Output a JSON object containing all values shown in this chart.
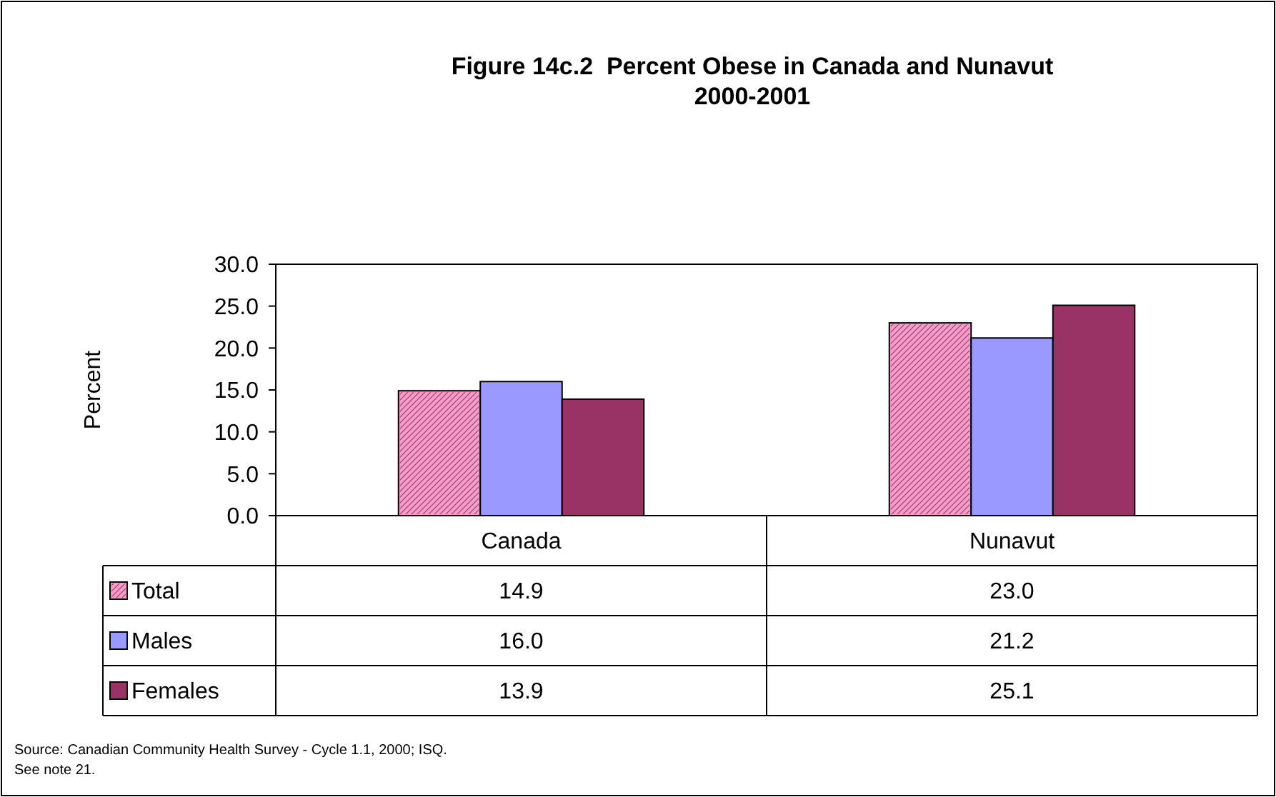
{
  "chart_data": {
    "type": "bar",
    "title": "Figure 14c.2  Percent Obese in Canada and Nunavut\n2000-2001",
    "ylabel": "Percent",
    "categories": [
      "Canada",
      "Nunavut"
    ],
    "series": [
      {
        "name": "Total",
        "color": "#ff99cc",
        "values": [
          14.9,
          23.0
        ],
        "value_labels": [
          "14.9",
          "23.0"
        ]
      },
      {
        "name": "Males",
        "color": "#9999ff",
        "values": [
          16.0,
          21.2
        ],
        "value_labels": [
          "16.0",
          "21.2"
        ]
      },
      {
        "name": "Females",
        "color": "#993366",
        "values": [
          13.9,
          25.1
        ],
        "value_labels": [
          "13.9",
          "25.1"
        ]
      }
    ],
    "ylim": [
      0,
      30
    ],
    "yticks": [
      {
        "value": 0,
        "label": "0.0"
      },
      {
        "value": 5,
        "label": "5.0"
      },
      {
        "value": 10,
        "label": "10.0"
      },
      {
        "value": 15,
        "label": "15.0"
      },
      {
        "value": 20,
        "label": "20.0"
      },
      {
        "value": 25,
        "label": "25.0"
      },
      {
        "value": 30,
        "label": "30.0"
      }
    ],
    "legend": "bottom",
    "annotations": [
      "Source: Canadian Community Health Survey - Cycle 1.1, 2000; ISQ.",
      "See note 21."
    ]
  }
}
